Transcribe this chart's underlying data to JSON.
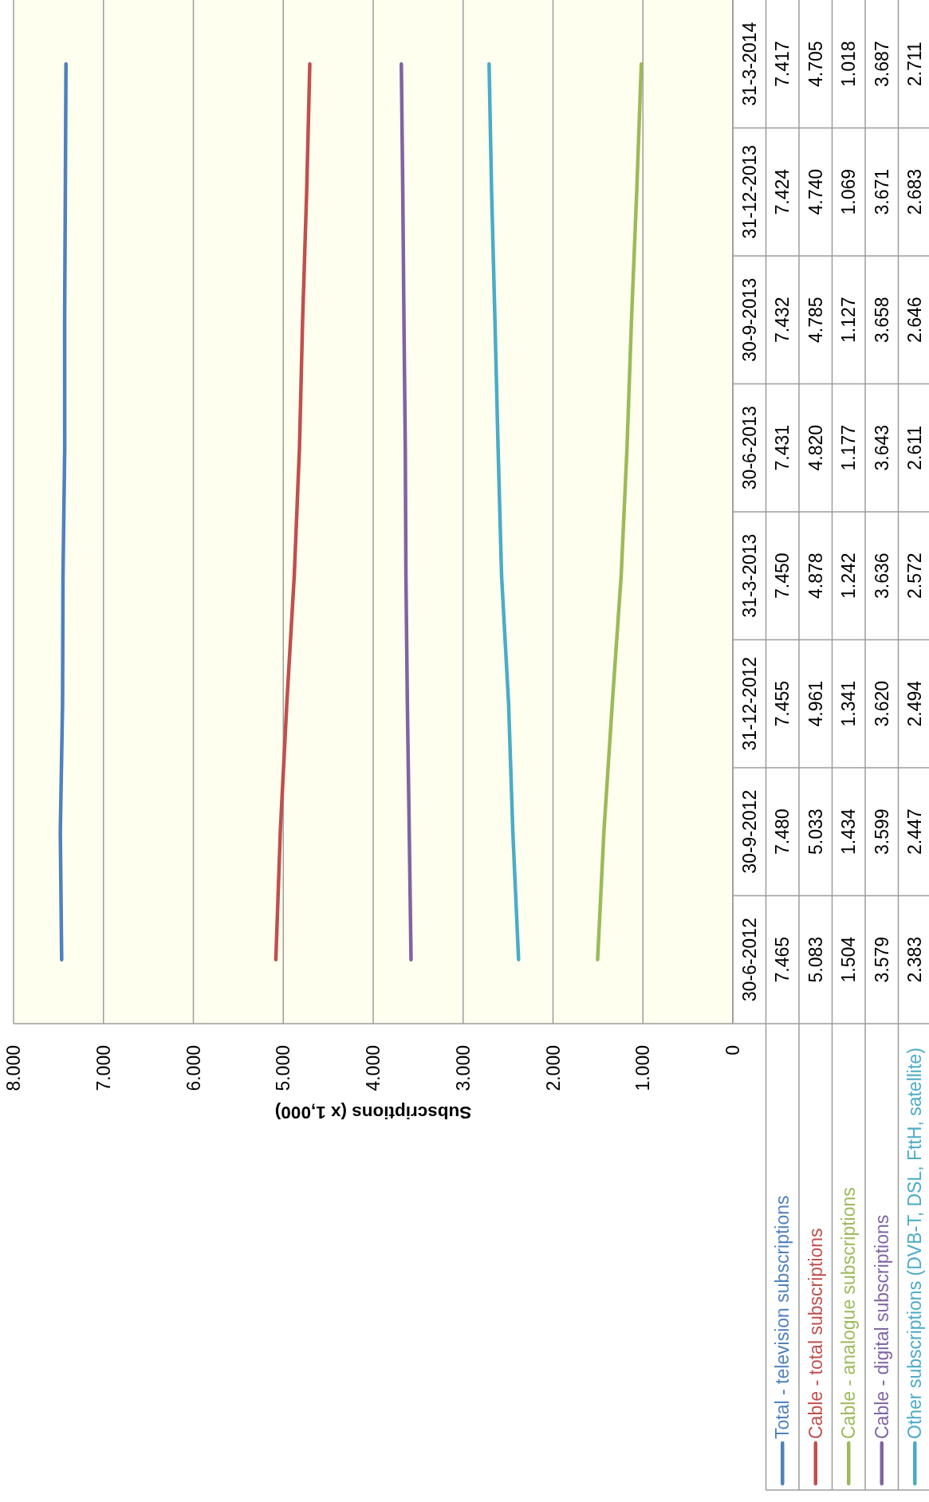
{
  "chart_data": {
    "type": "line",
    "orientation": "horizontal",
    "categories": [
      "31-3-2014",
      "31-12-2013",
      "30-9-2013",
      "30-6-2013",
      "31-3-2013",
      "31-12-2012",
      "30-9-2012",
      "30-6-2012"
    ],
    "series": [
      {
        "name": "Total - television subscriptions",
        "color": "#4f81bd",
        "values": [
          7417,
          7424,
          7432,
          7431,
          7450,
          7455,
          7480,
          7465
        ],
        "value_labels": [
          "7.417",
          "7.424",
          "7.432",
          "7.431",
          "7.450",
          "7.455",
          "7.480",
          "7.465"
        ]
      },
      {
        "name": "Cable - total subscriptions",
        "color": "#c0504d",
        "values": [
          4705,
          4740,
          4785,
          4820,
          4878,
          4961,
          5033,
          5083
        ],
        "value_labels": [
          "4.705",
          "4.740",
          "4.785",
          "4.820",
          "4.878",
          "4.961",
          "5.033",
          "5.083"
        ]
      },
      {
        "name": "Cable - analogue subscriptions",
        "color": "#9bbb59",
        "values": [
          1018,
          1069,
          1127,
          1177,
          1242,
          1341,
          1434,
          1504
        ],
        "value_labels": [
          "1.018",
          "1.069",
          "1.127",
          "1.177",
          "1.242",
          "1.341",
          "1.434",
          "1.504"
        ]
      },
      {
        "name": "Cable - digital subscriptions",
        "color": "#8064a2",
        "values": [
          3687,
          3671,
          3658,
          3643,
          3636,
          3620,
          3599,
          3579
        ],
        "value_labels": [
          "3.687",
          "3.671",
          "3.658",
          "3.643",
          "3.636",
          "3.620",
          "3.599",
          "3.579"
        ]
      },
      {
        "name": "Other subscriptions (DVB-T, DSL, FttH, satellite)",
        "color": "#4bacc6",
        "values": [
          2711,
          2683,
          2646,
          2611,
          2572,
          2494,
          2447,
          2383
        ],
        "value_labels": [
          "2.711",
          "2.683",
          "2.646",
          "2.611",
          "2.572",
          "2.494",
          "2.447",
          "2.383"
        ]
      }
    ],
    "xlabel": "Subscriptions (x 1,000)",
    "xlim": [
      8000,
      0
    ],
    "xticks": [
      {
        "value": 8000,
        "label": "8.000"
      },
      {
        "value": 7000,
        "label": "7.000"
      },
      {
        "value": 6000,
        "label": "6.000"
      },
      {
        "value": 5000,
        "label": "5.000"
      },
      {
        "value": 4000,
        "label": "4.000"
      },
      {
        "value": 3000,
        "label": "3.000"
      },
      {
        "value": 2000,
        "label": "2.000"
      },
      {
        "value": 1000,
        "label": "1.000"
      },
      0
    ],
    "grid": "x",
    "legend": "bottom",
    "marker": "none",
    "line_style": "solid"
  }
}
